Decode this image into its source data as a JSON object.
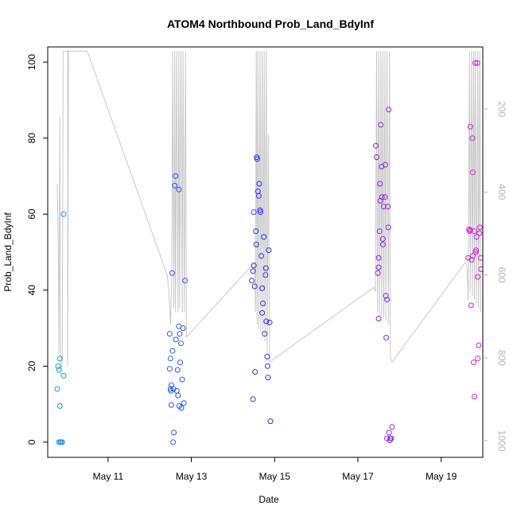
{
  "chart_data": {
    "type": "scatter",
    "title": "ATOM4 Northbound Prob_Land_BdyInf",
    "xlabel": "Date",
    "ylabel": "Prob_Land_BdyInf",
    "x_ticks": [
      {
        "label": "May 11",
        "value": 11
      },
      {
        "label": "May 13",
        "value": 13
      },
      {
        "label": "May 15",
        "value": 15
      },
      {
        "label": "May 17",
        "value": 17
      },
      {
        "label": "May 19",
        "value": 19
      }
    ],
    "xlim": [
      9.55,
      20.0
    ],
    "ylim": [
      -4,
      104
    ],
    "y_ticks": [
      0,
      20,
      40,
      60,
      80,
      100
    ],
    "y2_ticks": [
      200,
      400,
      600,
      800,
      1000
    ],
    "y2lim": [
      50,
      1040
    ],
    "y2_reversed": true,
    "grid": false,
    "colors": {
      "color_ramp": [
        "#1e9be8",
        "#2e2ef0",
        "#d61fd6"
      ],
      "depth_line": "#c8c8c8",
      "right_axis": "#b3b3b3"
    },
    "points": [
      [
        9.78,
        14
      ],
      [
        9.8,
        20
      ],
      [
        9.82,
        19
      ],
      [
        9.84,
        22
      ],
      [
        9.84,
        9.5
      ],
      [
        9.82,
        0
      ],
      [
        9.85,
        0
      ],
      [
        9.87,
        0
      ],
      [
        9.9,
        0
      ],
      [
        9.93,
        17.5
      ],
      [
        9.93,
        60
      ],
      [
        12.48,
        28.5
      ],
      [
        12.48,
        19.3
      ],
      [
        12.5,
        22
      ],
      [
        12.5,
        14
      ],
      [
        12.51,
        13.5
      ],
      [
        12.52,
        15
      ],
      [
        12.52,
        9.8
      ],
      [
        12.54,
        44.5
      ],
      [
        12.55,
        24
      ],
      [
        12.56,
        0
      ],
      [
        12.57,
        14
      ],
      [
        12.58,
        2.5
      ],
      [
        12.6,
        67.5
      ],
      [
        12.62,
        70
      ],
      [
        12.63,
        27
      ],
      [
        12.65,
        13.5
      ],
      [
        12.67,
        19
      ],
      [
        12.68,
        12.3
      ],
      [
        12.7,
        66.5
      ],
      [
        12.7,
        30.5
      ],
      [
        12.71,
        9.5
      ],
      [
        12.72,
        28.5
      ],
      [
        12.73,
        21
      ],
      [
        12.75,
        26
      ],
      [
        12.76,
        9
      ],
      [
        12.78,
        16.5
      ],
      [
        12.8,
        30
      ],
      [
        12.82,
        10.3
      ],
      [
        12.85,
        42.5
      ],
      [
        14.45,
        42.5
      ],
      [
        14.48,
        11.3
      ],
      [
        14.48,
        45
      ],
      [
        14.5,
        46.5
      ],
      [
        14.5,
        60.5
      ],
      [
        14.52,
        41
      ],
      [
        14.53,
        18.5
      ],
      [
        14.55,
        55.5
      ],
      [
        14.56,
        52
      ],
      [
        14.57,
        75
      ],
      [
        14.58,
        74.5
      ],
      [
        14.6,
        66
      ],
      [
        14.62,
        64.8
      ],
      [
        14.63,
        68
      ],
      [
        14.65,
        61
      ],
      [
        14.66,
        60.5
      ],
      [
        14.68,
        49
      ],
      [
        14.7,
        40.5
      ],
      [
        14.7,
        34
      ],
      [
        14.72,
        36.5
      ],
      [
        14.74,
        54
      ],
      [
        14.76,
        28.5
      ],
      [
        14.78,
        44
      ],
      [
        14.79,
        45.8
      ],
      [
        14.8,
        31.8
      ],
      [
        14.82,
        22.5
      ],
      [
        14.83,
        20
      ],
      [
        14.84,
        17
      ],
      [
        14.86,
        50.5
      ],
      [
        14.88,
        31.5
      ],
      [
        14.9,
        5.5
      ],
      [
        17.43,
        78
      ],
      [
        17.45,
        75
      ],
      [
        17.48,
        44.5
      ],
      [
        17.5,
        46
      ],
      [
        17.5,
        48.5
      ],
      [
        17.5,
        32.5
      ],
      [
        17.52,
        55.5
      ],
      [
        17.53,
        68
      ],
      [
        17.54,
        63.5
      ],
      [
        17.55,
        83.5
      ],
      [
        17.57,
        72.5
      ],
      [
        17.58,
        64.5
      ],
      [
        17.6,
        53.5
      ],
      [
        17.6,
        52
      ],
      [
        17.62,
        62
      ],
      [
        17.65,
        64.5
      ],
      [
        17.66,
        73
      ],
      [
        17.67,
        38.5
      ],
      [
        17.68,
        27.5
      ],
      [
        17.7,
        37.5
      ],
      [
        17.7,
        1
      ],
      [
        17.72,
        62
      ],
      [
        17.73,
        56.5
      ],
      [
        17.74,
        87.5
      ],
      [
        17.75,
        2.5
      ],
      [
        17.77,
        0.5
      ],
      [
        17.78,
        1
      ],
      [
        17.8,
        1
      ],
      [
        17.82,
        4
      ],
      [
        19.65,
        48.5
      ],
      [
        19.67,
        56
      ],
      [
        19.68,
        55.5
      ],
      [
        19.7,
        83
      ],
      [
        19.7,
        55.8
      ],
      [
        19.72,
        36
      ],
      [
        19.73,
        48
      ],
      [
        19.75,
        80
      ],
      [
        19.76,
        71
      ],
      [
        19.76,
        49
      ],
      [
        19.78,
        21
      ],
      [
        19.8,
        12
      ],
      [
        19.8,
        55.5
      ],
      [
        19.82,
        99.8
      ],
      [
        19.83,
        50
      ],
      [
        19.84,
        50.5
      ],
      [
        19.85,
        54
      ],
      [
        19.87,
        99.8
      ],
      [
        19.88,
        22
      ],
      [
        19.88,
        43.5
      ],
      [
        19.9,
        25.5
      ],
      [
        19.92,
        55
      ],
      [
        19.93,
        56.5
      ],
      [
        19.95,
        48.5
      ],
      [
        19.96,
        45.5
      ]
    ],
    "depth_series": [
      [
        9.78,
        380
      ],
      [
        9.8,
        520
      ],
      [
        9.82,
        790
      ],
      [
        9.84,
        220
      ],
      [
        9.86,
        820
      ],
      [
        9.88,
        830
      ],
      [
        9.9,
        800
      ],
      [
        9.92,
        60
      ],
      [
        9.95,
        60
      ],
      [
        10.03,
        60
      ],
      [
        10.03,
        820
      ],
      [
        10.05,
        60
      ],
      [
        10.5,
        60
      ],
      [
        12.42,
        600
      ],
      [
        12.46,
        640
      ],
      [
        12.5,
        720
      ],
      [
        12.53,
        600
      ],
      [
        12.55,
        60
      ],
      [
        12.58,
        680
      ],
      [
        12.6,
        60
      ],
      [
        12.62,
        690
      ],
      [
        12.65,
        60
      ],
      [
        12.68,
        690
      ],
      [
        12.7,
        60
      ],
      [
        12.72,
        680
      ],
      [
        12.75,
        60
      ],
      [
        12.78,
        690
      ],
      [
        12.8,
        60
      ],
      [
        12.83,
        690
      ],
      [
        12.86,
        60
      ],
      [
        12.88,
        750
      ],
      [
        14.52,
        570
      ],
      [
        14.54,
        690
      ],
      [
        14.56,
        60
      ],
      [
        14.58,
        720
      ],
      [
        14.6,
        60
      ],
      [
        14.62,
        730
      ],
      [
        14.65,
        60
      ],
      [
        14.67,
        740
      ],
      [
        14.7,
        60
      ],
      [
        14.72,
        740
      ],
      [
        14.75,
        60
      ],
      [
        14.77,
        760
      ],
      [
        14.8,
        60
      ],
      [
        14.82,
        790
      ],
      [
        14.85,
        260
      ],
      [
        14.88,
        810
      ],
      [
        17.38,
        630
      ],
      [
        17.42,
        640
      ],
      [
        17.45,
        60
      ],
      [
        17.47,
        690
      ],
      [
        17.5,
        60
      ],
      [
        17.52,
        700
      ],
      [
        17.55,
        60
      ],
      [
        17.57,
        700
      ],
      [
        17.6,
        60
      ],
      [
        17.62,
        700
      ],
      [
        17.65,
        60
      ],
      [
        17.67,
        710
      ],
      [
        17.7,
        60
      ],
      [
        17.73,
        720
      ],
      [
        17.76,
        60
      ],
      [
        17.78,
        800
      ],
      [
        17.82,
        810
      ],
      [
        19.58,
        570
      ],
      [
        19.62,
        580
      ],
      [
        19.65,
        660
      ],
      [
        19.68,
        60
      ],
      [
        19.7,
        640
      ],
      [
        19.73,
        60
      ],
      [
        19.75,
        650
      ],
      [
        19.78,
        60
      ],
      [
        19.8,
        660
      ],
      [
        19.82,
        60
      ],
      [
        19.85,
        670
      ],
      [
        19.88,
        60
      ],
      [
        19.9,
        680
      ],
      [
        19.93,
        60
      ],
      [
        19.95,
        690
      ]
    ]
  }
}
